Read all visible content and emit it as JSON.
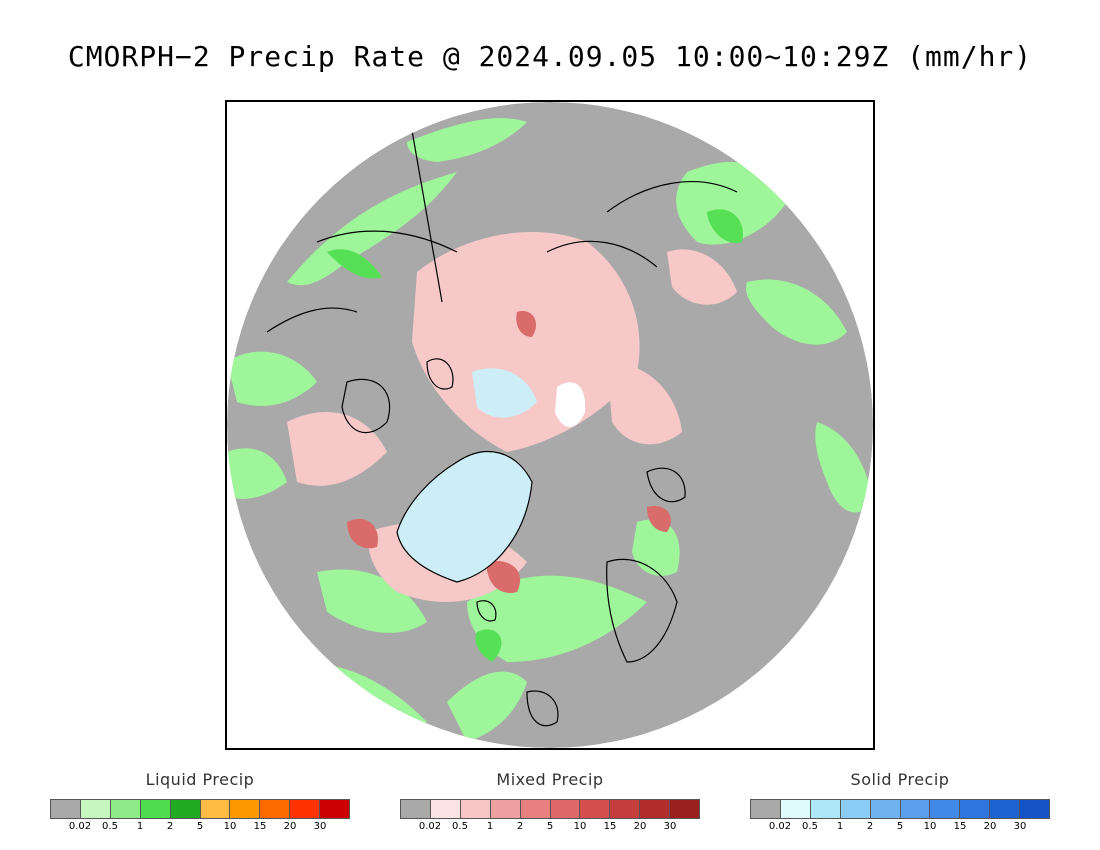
{
  "title": "CMORPH−2 Precip Rate @ 2024.09.05 10:00~10:29Z (mm/hr)",
  "map": {
    "colors": {
      "background": "#ffffff",
      "no_precip": "#a9a9a9",
      "liquid_light": "#9ef59a",
      "liquid_med": "#55e055",
      "mixed_light": "#f6c8c8",
      "mixed_med": "#d96b6b",
      "solid_light": "#cdeef7",
      "coast": "#000000"
    }
  },
  "legends": [
    {
      "title": "Liquid Precip",
      "colors": [
        "#a9a9a9",
        "#c6f7c0",
        "#8eeb88",
        "#4fdd4f",
        "#22aa22",
        "#ffbb44",
        "#ff9900",
        "#ff6a00",
        "#ff3300",
        "#cc0000"
      ],
      "ticks": [
        "0.02",
        "0.5",
        "1",
        "2",
        "5",
        "10",
        "15",
        "20",
        "30"
      ]
    },
    {
      "title": "Mixed Precip",
      "colors": [
        "#a9a9a9",
        "#fde3e3",
        "#f7c6c6",
        "#efa1a1",
        "#e88080",
        "#e06868",
        "#d45050",
        "#c63d3d",
        "#b32c2c",
        "#9c1f1f"
      ],
      "ticks": [
        "0.02",
        "0.5",
        "1",
        "2",
        "5",
        "10",
        "15",
        "20",
        "30"
      ]
    },
    {
      "title": "Solid Precip",
      "colors": [
        "#a9a9a9",
        "#e0fbfd",
        "#aee8f7",
        "#8ccdf5",
        "#6fb4f0",
        "#5a9eec",
        "#4288e6",
        "#2f75dd",
        "#1f62d2",
        "#1452c8"
      ],
      "ticks": [
        "0.02",
        "0.5",
        "1",
        "2",
        "5",
        "10",
        "15",
        "20",
        "30"
      ]
    }
  ]
}
